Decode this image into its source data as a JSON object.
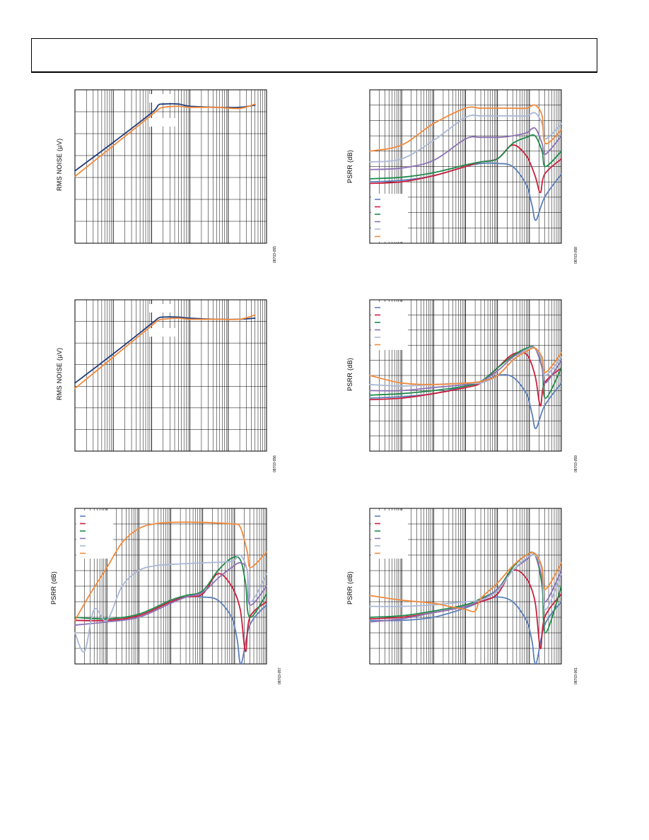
{
  "chart_data": [
    {
      "id": "p1",
      "type": "line",
      "xscale": "log",
      "xlim": [
        10,
        1000000
      ],
      "ylim": [
        0,
        140
      ],
      "ylabel": "RMS NOISE (µV)",
      "figure_id": "08703-055",
      "legend": "none",
      "series": [
        {
          "name": "",
          "color": "#1f3d7a",
          "x": [
            10,
            100,
            1000,
            1500,
            2000,
            5000,
            10000,
            50000,
            200000,
            500000
          ],
          "y": [
            66,
            92,
            119,
            126,
            127,
            127,
            125,
            124,
            124,
            126
          ]
        },
        {
          "name": "",
          "color": "#f28a3c",
          "x": [
            10,
            100,
            1000,
            1500,
            2000,
            5000,
            10000,
            50000,
            200000,
            500000
          ],
          "y": [
            61,
            89,
            117,
            122,
            124,
            125,
            124,
            124,
            123,
            127
          ]
        }
      ]
    },
    {
      "id": "p2",
      "type": "line",
      "xscale": "log",
      "xlim": [
        10,
        1000000
      ],
      "ylim": [
        0,
        140
      ],
      "ylabel": "RMS NOISE (µV)",
      "figure_id": "08703-056",
      "legend": "none",
      "series": [
        {
          "name": "",
          "color": "#1f3d7a",
          "x": [
            10,
            100,
            1000,
            1500,
            2000,
            5000,
            10000,
            50000,
            200000,
            500000
          ],
          "y": [
            63,
            90,
            118,
            123,
            124,
            124,
            123,
            122,
            122,
            123
          ]
        },
        {
          "name": "",
          "color": "#f28a3c",
          "x": [
            10,
            100,
            1000,
            1500,
            2000,
            5000,
            10000,
            50000,
            200000,
            500000
          ],
          "y": [
            58,
            87,
            116,
            121,
            122,
            123,
            122,
            122,
            122,
            126
          ]
        }
      ]
    },
    {
      "id": "p3",
      "type": "line",
      "xscale": "log",
      "xlim": [
        10,
        10000000
      ],
      "ylim": [
        -100,
        0
      ],
      "ylabel": "PSRR (dB)",
      "figure_id": "08703-057",
      "legend": "top-left",
      "series": [
        {
          "name": "",
          "color": "#5b7fba",
          "x": [
            10,
            100,
            1000,
            10000,
            30000,
            100000,
            300000,
            800000,
            1200000,
            1600000,
            3000000,
            10000000
          ],
          "y": [
            -72,
            -72,
            -69,
            -60,
            -57,
            -57,
            -59,
            -70,
            -84,
            -100,
            -75,
            -62
          ]
        },
        {
          "name": "",
          "color": "#cc1f3d",
          "x": [
            10,
            100,
            1000,
            10000,
            30000,
            100000,
            300000,
            800000,
            1500000,
            2200000,
            3000000,
            10000000
          ],
          "y": [
            -72,
            -72,
            -69,
            -60,
            -57,
            -55,
            -42,
            -50,
            -65,
            -92,
            -70,
            -60
          ]
        },
        {
          "name": "",
          "color": "#1e8a4a",
          "x": [
            10,
            100,
            1000,
            10000,
            30000,
            100000,
            300000,
            800000,
            1500000,
            2200000,
            3000000,
            10000000
          ],
          "y": [
            -70,
            -71,
            -68,
            -59,
            -56,
            -53,
            -40,
            -32,
            -33,
            -48,
            -70,
            -55
          ]
        },
        {
          "name": "",
          "color": "#8b72b5",
          "x": [
            10,
            100,
            1000,
            10000,
            30000,
            100000,
            300000,
            800000,
            1500000,
            2500000,
            3000000,
            10000000
          ],
          "y": [
            -75,
            -73,
            -70,
            -61,
            -57,
            -54,
            -45,
            -38,
            -35,
            -40,
            -62,
            -50
          ]
        },
        {
          "name": "",
          "color": "#a9b8d6",
          "x": [
            10,
            20,
            40,
            100,
            300,
            1000,
            3000,
            10000,
            100000,
            800000,
            1500000,
            2500000,
            3200000,
            10000000
          ],
          "y": [
            -80,
            -92,
            -65,
            -72,
            -50,
            -40,
            -37,
            -36,
            -35,
            -34,
            -30,
            -40,
            -60,
            -42
          ]
        },
        {
          "name": "",
          "color": "#f28a3c",
          "x": [
            10,
            30,
            100,
            300,
            1000,
            3000,
            10000,
            100000,
            800000,
            1500000,
            2500000,
            3200000,
            10000000
          ],
          "y": [
            -72,
            -55,
            -38,
            -22,
            -13,
            -10,
            -9,
            -9,
            -10,
            -12,
            -28,
            -38,
            -28
          ]
        }
      ]
    },
    {
      "id": "p4",
      "type": "line",
      "xscale": "log",
      "xlim": [
        10,
        10000000
      ],
      "ylim": [
        -100,
        0
      ],
      "ylabel": "PSRR (dB)",
      "figure_id": "08703-058",
      "legend": "bottom-left",
      "series": [
        {
          "name": "",
          "color": "#5b7fba",
          "x": [
            10,
            100,
            1000,
            10000,
            30000,
            100000,
            300000,
            800000,
            1200000,
            1600000,
            3000000,
            10000000
          ],
          "y": [
            -60,
            -59,
            -56,
            -50,
            -48,
            -48,
            -50,
            -62,
            -75,
            -85,
            -70,
            -55
          ]
        },
        {
          "name": "",
          "color": "#cc1f3d",
          "x": [
            10,
            100,
            1000,
            10000,
            30000,
            100000,
            300000,
            800000,
            1500000,
            2200000,
            3000000,
            10000000
          ],
          "y": [
            -61,
            -60,
            -56,
            -50,
            -47,
            -45,
            -36,
            -43,
            -56,
            -67,
            -55,
            -45
          ]
        },
        {
          "name": "",
          "color": "#1e8a4a",
          "x": [
            10,
            100,
            1000,
            10000,
            30000,
            100000,
            300000,
            800000,
            1500000,
            2500000,
            3200000,
            10000000
          ],
          "y": [
            -58,
            -57,
            -54,
            -49,
            -47,
            -45,
            -35,
            -31,
            -30,
            -40,
            -50,
            -40
          ]
        },
        {
          "name": "",
          "color": "#8b72b5",
          "x": [
            10,
            100,
            1000,
            10000,
            30000,
            100000,
            300000,
            800000,
            1500000,
            2500000,
            3200000,
            10000000
          ],
          "y": [
            -52,
            -51,
            -46,
            -32,
            -31,
            -31,
            -30,
            -28,
            -25,
            -35,
            -42,
            -30
          ]
        },
        {
          "name": "",
          "color": "#a9b8d6",
          "x": [
            10,
            100,
            1000,
            10000,
            30000,
            100000,
            300000,
            800000,
            1500000,
            2500000,
            3200000,
            10000000
          ],
          "y": [
            -47,
            -45,
            -33,
            -18,
            -17,
            -17,
            -17,
            -17,
            -15,
            -22,
            -32,
            -22
          ]
        },
        {
          "name": "",
          "color": "#f28a3c",
          "x": [
            10,
            100,
            1000,
            10000,
            30000,
            100000,
            300000,
            800000,
            1500000,
            2500000,
            3200000,
            10000000
          ],
          "y": [
            -40,
            -36,
            -22,
            -12,
            -12,
            -12,
            -12,
            -12,
            -10,
            -17,
            -35,
            -26
          ]
        }
      ]
    },
    {
      "id": "p5",
      "type": "line",
      "xscale": "log",
      "xlim": [
        10,
        10000000
      ],
      "ylim": [
        -100,
        0
      ],
      "ylabel": "PSRR (dB)",
      "figure_id": "08703-059",
      "legend": "top-left",
      "series": [
        {
          "name": "",
          "color": "#5b7fba",
          "x": [
            10,
            100,
            1000,
            10000,
            30000,
            100000,
            300000,
            800000,
            1200000,
            1600000,
            3000000,
            10000000
          ],
          "y": [
            -65,
            -64,
            -62,
            -57,
            -55,
            -50,
            -51,
            -62,
            -75,
            -85,
            -70,
            -55
          ]
        },
        {
          "name": "",
          "color": "#cc1f3d",
          "x": [
            10,
            100,
            1000,
            10000,
            30000,
            100000,
            300000,
            800000,
            1500000,
            2200000,
            3000000,
            10000000
          ],
          "y": [
            -66,
            -65,
            -62,
            -58,
            -55,
            -45,
            -36,
            -36,
            -50,
            -70,
            -55,
            -45
          ]
        },
        {
          "name": "",
          "color": "#1e8a4a",
          "x": [
            10,
            100,
            1000,
            10000,
            30000,
            100000,
            300000,
            800000,
            1500000,
            2500000,
            3200000,
            10000000
          ],
          "y": [
            -63,
            -62,
            -60,
            -57,
            -54,
            -45,
            -37,
            -32,
            -32,
            -45,
            -65,
            -45
          ]
        },
        {
          "name": "",
          "color": "#8b72b5",
          "x": [
            10,
            100,
            1000,
            10000,
            30000,
            100000,
            300000,
            800000,
            1500000,
            2500000,
            3200000,
            10000000
          ],
          "y": [
            -60,
            -60,
            -58,
            -56,
            -54,
            -47,
            -38,
            -33,
            -32,
            -45,
            -55,
            -40
          ]
        },
        {
          "name": "",
          "color": "#a9b8d6",
          "x": [
            10,
            100,
            1000,
            10000,
            30000,
            100000,
            300000,
            800000,
            1500000,
            2500000,
            3200000,
            10000000
          ],
          "y": [
            -56,
            -57,
            -56,
            -55,
            -55,
            -50,
            -40,
            -33,
            -32,
            -40,
            -50,
            -38
          ]
        },
        {
          "name": "",
          "color": "#f28a3c",
          "x": [
            10,
            100,
            1000,
            10000,
            30000,
            100000,
            300000,
            800000,
            1500000,
            2500000,
            3200000,
            10000000
          ],
          "y": [
            -50,
            -55,
            -56,
            -55,
            -54,
            -50,
            -40,
            -34,
            -32,
            -38,
            -48,
            -35
          ]
        }
      ]
    },
    {
      "id": "p6",
      "type": "line",
      "xscale": "log",
      "xlim": [
        10,
        10000000
      ],
      "ylim": [
        -100,
        0
      ],
      "ylabel": "PSRR (dB)",
      "figure_id": "08703-061",
      "legend": "top-left",
      "series": [
        {
          "name": "",
          "color": "#5b7fba",
          "x": [
            10,
            100,
            1000,
            10000,
            30000,
            100000,
            300000,
            800000,
            1200000,
            1600000,
            3000000,
            10000000
          ],
          "y": [
            -72,
            -72,
            -70,
            -64,
            -60,
            -57,
            -60,
            -72,
            -85,
            -100,
            -75,
            -60
          ]
        },
        {
          "name": "",
          "color": "#cc1f3d",
          "x": [
            10,
            100,
            1000,
            10000,
            30000,
            100000,
            300000,
            800000,
            1500000,
            2200000,
            3000000,
            10000000
          ],
          "y": [
            -71,
            -70,
            -67,
            -63,
            -60,
            -55,
            -40,
            -45,
            -60,
            -90,
            -70,
            -55
          ]
        },
        {
          "name": "",
          "color": "#1e8a4a",
          "x": [
            10,
            100,
            1000,
            10000,
            30000,
            100000,
            300000,
            800000,
            1500000,
            2500000,
            3200000,
            10000000
          ],
          "y": [
            -70,
            -69,
            -66,
            -62,
            -58,
            -52,
            -38,
            -30,
            -30,
            -50,
            -80,
            -50
          ]
        },
        {
          "name": "",
          "color": "#8b72b5",
          "x": [
            10,
            100,
            1000,
            10000,
            30000,
            100000,
            300000,
            800000,
            1500000,
            2500000,
            3200000,
            10000000
          ],
          "y": [
            -73,
            -71,
            -67,
            -63,
            -59,
            -52,
            -40,
            -33,
            -30,
            -45,
            -60,
            -40
          ]
        },
        {
          "name": "",
          "color": "#a9b8d6",
          "x": [
            10,
            100,
            1000,
            10000,
            30000,
            100000,
            300000,
            800000,
            1500000,
            2500000,
            3200000,
            10000000
          ],
          "y": [
            -63,
            -63,
            -62,
            -60,
            -59,
            -53,
            -40,
            -32,
            -30,
            -40,
            -65,
            -42
          ]
        },
        {
          "name": "",
          "color": "#f28a3c",
          "x": [
            10,
            100,
            1000,
            3000,
            10000,
            20000,
            30000,
            100000,
            300000,
            800000,
            1500000,
            2500000,
            3200000,
            10000000
          ],
          "y": [
            -56,
            -59,
            -61,
            -63,
            -65,
            -66,
            -58,
            -48,
            -37,
            -30,
            -29,
            -38,
            -52,
            -35
          ]
        }
      ]
    }
  ]
}
